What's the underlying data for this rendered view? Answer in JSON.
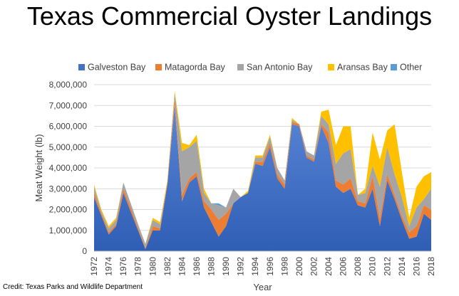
{
  "title": "Texas Commercial Oyster Landings",
  "credit": "Credit: Texas Parks and Wildlife Department",
  "chart_data": {
    "type": "area",
    "stacked": true,
    "title": "Texas Commercial Oyster Landings",
    "xlabel": "Year",
    "ylabel": "Meat Weight (lb)",
    "ylim": [
      0,
      8000000
    ],
    "yticks": [
      "0",
      "1,000,000",
      "2,000,000",
      "3,000,000",
      "4,000,000",
      "5,000,000",
      "6,000,000",
      "7,000,000",
      "8,000,000"
    ],
    "xticks": [
      "1972",
      "1974",
      "1976",
      "1978",
      "1980",
      "1982",
      "1984",
      "1986",
      "1988",
      "1990",
      "1992",
      "1994",
      "1996",
      "1998",
      "2000",
      "2002",
      "2004",
      "2006",
      "2008",
      "2010",
      "2012",
      "2014",
      "2016",
      "2018"
    ],
    "legend_position": "top",
    "grid": true,
    "x": [
      1972,
      1973,
      1974,
      1975,
      1976,
      1977,
      1978,
      1979,
      1980,
      1981,
      1982,
      1983,
      1984,
      1985,
      1986,
      1987,
      1988,
      1989,
      1990,
      1991,
      1992,
      1993,
      1994,
      1995,
      1996,
      1997,
      1998,
      1999,
      2000,
      2001,
      2002,
      2003,
      2004,
      2005,
      2006,
      2007,
      2008,
      2009,
      2010,
      2011,
      2012,
      2013,
      2014,
      2015,
      2016,
      2017,
      2018
    ],
    "series": [
      {
        "name": "Galveston Bay",
        "color": "#4472C4",
        "values": [
          2600000,
          1700000,
          800000,
          1200000,
          2800000,
          1900000,
          1000000,
          100000,
          1000000,
          1000000,
          3200000,
          7000000,
          2400000,
          3300000,
          3600000,
          2100000,
          1400000,
          700000,
          1200000,
          2300000,
          2600000,
          2800000,
          4200000,
          4100000,
          5000000,
          3500000,
          3000000,
          6100000,
          6000000,
          4500000,
          4300000,
          6000000,
          5200000,
          3100000,
          2800000,
          3000000,
          2200000,
          2100000,
          3000000,
          1200000,
          3400000,
          2500000,
          1500000,
          600000,
          700000,
          1800000,
          1500000
        ]
      },
      {
        "name": "Matagorda Bay",
        "color": "#ED7D31",
        "values": [
          200000,
          100000,
          100000,
          100000,
          200000,
          200000,
          100000,
          50000,
          200000,
          100000,
          100000,
          300000,
          300000,
          200000,
          200000,
          300000,
          600000,
          800000,
          600000,
          0,
          0,
          0,
          100000,
          200000,
          200000,
          200000,
          200000,
          100000,
          100000,
          100000,
          100000,
          100000,
          500000,
          300000,
          400000,
          500000,
          200000,
          200000,
          600000,
          400000,
          300000,
          200000,
          200000,
          300000,
          500000,
          400000,
          500000
        ]
      },
      {
        "name": "San Antonio Bay",
        "color": "#A5A5A5",
        "values": [
          300000,
          100000,
          200000,
          200000,
          300000,
          200000,
          200000,
          200000,
          300000,
          200000,
          0,
          300000,
          2100000,
          1500000,
          1500000,
          400000,
          300000,
          700000,
          300000,
          700000,
          0,
          0,
          200000,
          200000,
          300000,
          300000,
          200000,
          100000,
          0,
          200000,
          200000,
          400000,
          400000,
          800000,
          1500000,
          1400000,
          300000,
          500000,
          500000,
          1500000,
          1300000,
          1000000,
          900000,
          300000,
          900000,
          300000,
          1000000
        ]
      },
      {
        "name": "Aransas Bay",
        "color": "#FFC000",
        "values": [
          100000,
          100000,
          100000,
          100000,
          0,
          0,
          0,
          0,
          100000,
          100000,
          100000,
          100000,
          400000,
          100000,
          300000,
          200000,
          0,
          0,
          0,
          0,
          0,
          100000,
          100000,
          100000,
          100000,
          0,
          0,
          100000,
          0,
          0,
          0,
          200000,
          700000,
          900000,
          1300000,
          1100000,
          0,
          200000,
          1600000,
          1300000,
          800000,
          2400000,
          1200000,
          400000,
          1000000,
          1100000,
          800000
        ]
      },
      {
        "name": "Other",
        "color": "#5B9BD5",
        "values": [
          0,
          0,
          0,
          0,
          0,
          0,
          0,
          0,
          0,
          0,
          0,
          0,
          0,
          0,
          0,
          0,
          0,
          100000,
          0,
          0,
          0,
          0,
          0,
          0,
          0,
          0,
          0,
          0,
          0,
          0,
          0,
          0,
          0,
          0,
          0,
          0,
          0,
          0,
          0,
          0,
          0,
          0,
          0,
          0,
          0,
          0,
          0
        ]
      }
    ]
  }
}
